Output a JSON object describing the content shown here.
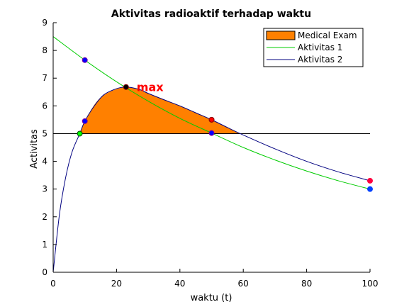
{
  "chart_data": {
    "type": "line",
    "title": "Aktivitas radioaktif terhadap waktu",
    "xlabel": "waktu (t)",
    "ylabel": "Activitas",
    "xlim": [
      0,
      100
    ],
    "ylim": [
      0,
      9
    ],
    "x_ticks": [
      0,
      20,
      40,
      60,
      80,
      100
    ],
    "y_ticks": [
      0,
      1,
      2,
      3,
      4,
      5,
      6,
      7,
      8,
      9
    ],
    "grid": false,
    "legend_position": "top-right",
    "threshold": 5,
    "annotation": "max",
    "series": [
      {
        "name": "Medical Exam",
        "kind": "filled-area",
        "color": "#ff8000",
        "description_points": [
          [
            8.4,
            5.0
          ],
          [
            10,
            5.45
          ],
          [
            15,
            6.3
          ],
          [
            23,
            6.68
          ],
          [
            30,
            6.45
          ],
          [
            40,
            6.0
          ],
          [
            50,
            5.5
          ],
          [
            58.7,
            5.0
          ]
        ]
      },
      {
        "name": "Aktivitas 1",
        "kind": "line",
        "color": "#00cc00",
        "points": [
          [
            0,
            8.5
          ],
          [
            10,
            7.65
          ],
          [
            20,
            6.87
          ],
          [
            30,
            6.17
          ],
          [
            40,
            5.55
          ],
          [
            50,
            5.02
          ],
          [
            60,
            4.5
          ],
          [
            70,
            4.05
          ],
          [
            80,
            3.65
          ],
          [
            90,
            3.3
          ],
          [
            100,
            3.0
          ]
        ]
      },
      {
        "name": "Aktivitas 2",
        "kind": "line",
        "color": "#000080",
        "points": [
          [
            0,
            0.0
          ],
          [
            2,
            2.1
          ],
          [
            4,
            3.45
          ],
          [
            6,
            4.35
          ],
          [
            8.4,
            5.0
          ],
          [
            10,
            5.45
          ],
          [
            13,
            6.0
          ],
          [
            16,
            6.4
          ],
          [
            20,
            6.62
          ],
          [
            23,
            6.68
          ],
          [
            27,
            6.6
          ],
          [
            30,
            6.45
          ],
          [
            35,
            6.22
          ],
          [
            40,
            6.0
          ],
          [
            45,
            5.75
          ],
          [
            50,
            5.5
          ],
          [
            55,
            5.22
          ],
          [
            60,
            4.95
          ],
          [
            70,
            4.45
          ],
          [
            80,
            4.0
          ],
          [
            90,
            3.62
          ],
          [
            100,
            3.3
          ]
        ]
      }
    ],
    "markers": [
      {
        "x": 10,
        "y": 7.65,
        "color": "#0000ff",
        "edge": "#8000a0"
      },
      {
        "x": 10,
        "y": 5.45,
        "color": "#0000ff",
        "edge": "#8000a0"
      },
      {
        "x": 8.4,
        "y": 5.0,
        "color": "#00ff00",
        "edge": "#004000"
      },
      {
        "x": 23,
        "y": 6.68,
        "color": "#000000",
        "edge": "#800000"
      },
      {
        "x": 50,
        "y": 5.5,
        "color": "#ff0000",
        "edge": "#800000"
      },
      {
        "x": 50,
        "y": 5.02,
        "color": "#0000ff",
        "edge": "#8000a0"
      },
      {
        "x": 100,
        "y": 3.3,
        "color": "#ff0040",
        "edge": "#ff0040"
      },
      {
        "x": 100,
        "y": 3.0,
        "color": "#0040ff",
        "edge": "#0040ff"
      }
    ]
  }
}
